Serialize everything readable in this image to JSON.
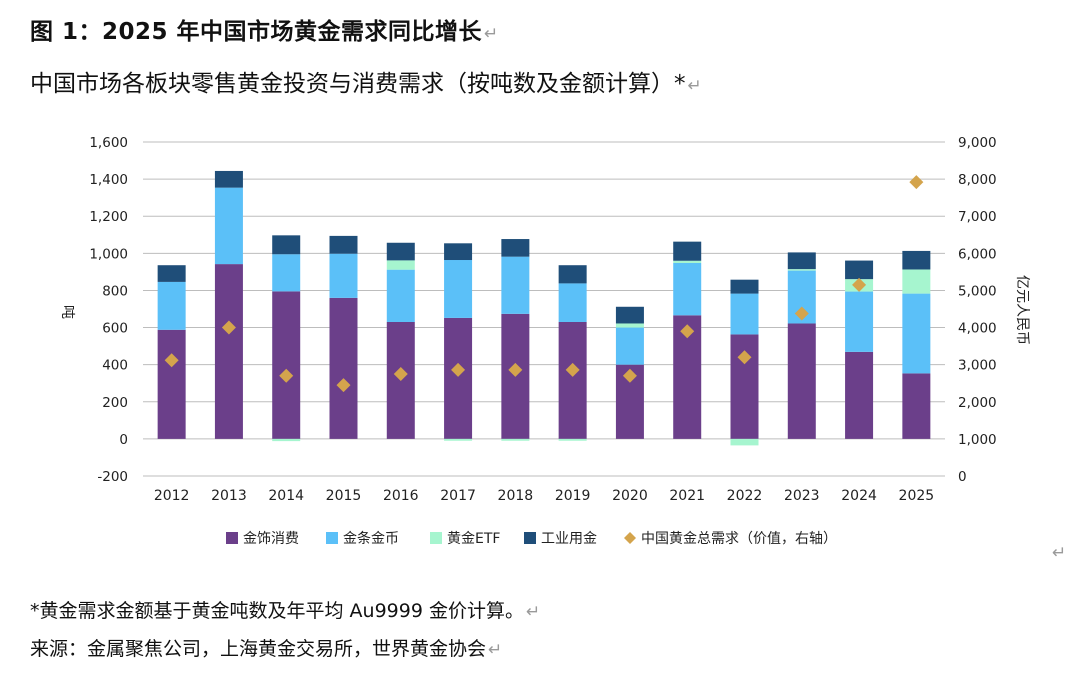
{
  "header": {
    "title": "图 1：2025 年中国市场黄金需求同比增长",
    "subtitle": "中国市场各板块零售黄金投资与消费需求（按吨数及金额计算）*"
  },
  "footer": {
    "note": "*黄金需求金额基于黄金吨数及年平均 Au9999 金价计算。",
    "source": "来源：金属聚焦公司，上海黄金交易所，世界黄金协会"
  },
  "chart_data": {
    "type": "bar",
    "stacked": true,
    "categories": [
      "2012",
      "2013",
      "2014",
      "2015",
      "2016",
      "2017",
      "2018",
      "2019",
      "2020",
      "2021",
      "2022",
      "2023",
      "2024",
      "2025"
    ],
    "series": [
      {
        "name": "金饰消费",
        "color": "#6b3f8a",
        "axis": "left",
        "values": [
          588,
          942,
          795,
          760,
          630,
          652,
          674,
          630,
          400,
          666,
          563,
          622,
          469,
          353
        ]
      },
      {
        "name": "金条金币",
        "color": "#5bc0f8",
        "axis": "left",
        "values": [
          258,
          412,
          200,
          238,
          282,
          312,
          308,
          208,
          200,
          282,
          220,
          285,
          325,
          430
        ]
      },
      {
        "name": "黄金ETF",
        "color": "#a6f5cf",
        "axis": "left",
        "values": [
          0,
          0,
          -12,
          0,
          50,
          -10,
          -10,
          -10,
          22,
          12,
          -35,
          8,
          67,
          130
        ]
      },
      {
        "name": "工业用金",
        "color": "#1f4e79",
        "axis": "left",
        "values": [
          90,
          90,
          102,
          96,
          95,
          90,
          95,
          98,
          90,
          103,
          75,
          90,
          100,
          100
        ]
      },
      {
        "name": "中国黄金总需求（价值，右轴）",
        "color": "#d4a44c",
        "axis": "right",
        "marker": "diamond",
        "values": [
          3120,
          4000,
          2700,
          2450,
          2750,
          2860,
          2860,
          2860,
          2700,
          3900,
          3200,
          4380,
          5150,
          7920
        ]
      }
    ],
    "y_left": {
      "label": "吨",
      "min": -200,
      "max": 1600,
      "ticks": [
        -200,
        0,
        200,
        400,
        600,
        800,
        1000,
        1200,
        1400,
        1600
      ],
      "tick_labels": [
        "-200",
        "0",
        "200",
        "400",
        "600",
        "800",
        "1,000",
        "1,200",
        "1,400",
        "1,600"
      ]
    },
    "y_right": {
      "label": "亿元人民币",
      "min": 0,
      "max": 9000,
      "ticks": [
        0,
        1000,
        2000,
        3000,
        4000,
        5000,
        6000,
        7000,
        8000,
        9000
      ],
      "tick_labels": [
        "0",
        "1,000",
        "2,000",
        "3,000",
        "4,000",
        "5,000",
        "6,000",
        "7,000",
        "8,000",
        "9,000"
      ]
    },
    "grid": true,
    "legend_position": "bottom"
  }
}
